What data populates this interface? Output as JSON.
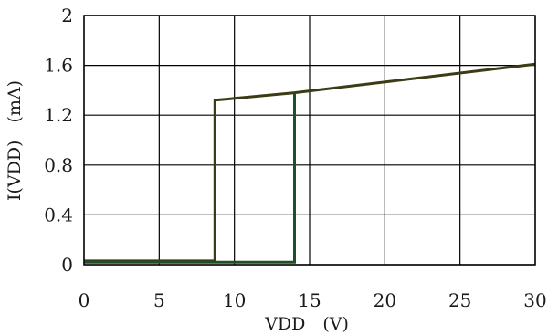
{
  "chart_data": {
    "type": "line",
    "title": "",
    "xlabel": "VDD　(V)",
    "ylabel": "I(VDD)　(mA)",
    "xlim": [
      0,
      30
    ],
    "ylim": [
      0,
      2
    ],
    "x_ticks": [
      "0",
      "5",
      "10",
      "15",
      "20",
      "25",
      "30"
    ],
    "y_ticks": [
      "0",
      "0.4",
      "0.8",
      "1.2",
      "1.6",
      "2"
    ],
    "grid": true,
    "legend": "none",
    "series": [
      {
        "color": "#3b3b16",
        "points": [
          [
            0,
            0.03
          ],
          [
            8.7,
            0.03
          ],
          [
            8.7,
            1.32
          ],
          [
            14,
            1.38
          ],
          [
            30,
            1.61
          ]
        ]
      },
      {
        "color": "#1f4f24",
        "points": [
          [
            0,
            0.02
          ],
          [
            14,
            0.02
          ],
          [
            14,
            1.38
          ]
        ]
      }
    ]
  }
}
